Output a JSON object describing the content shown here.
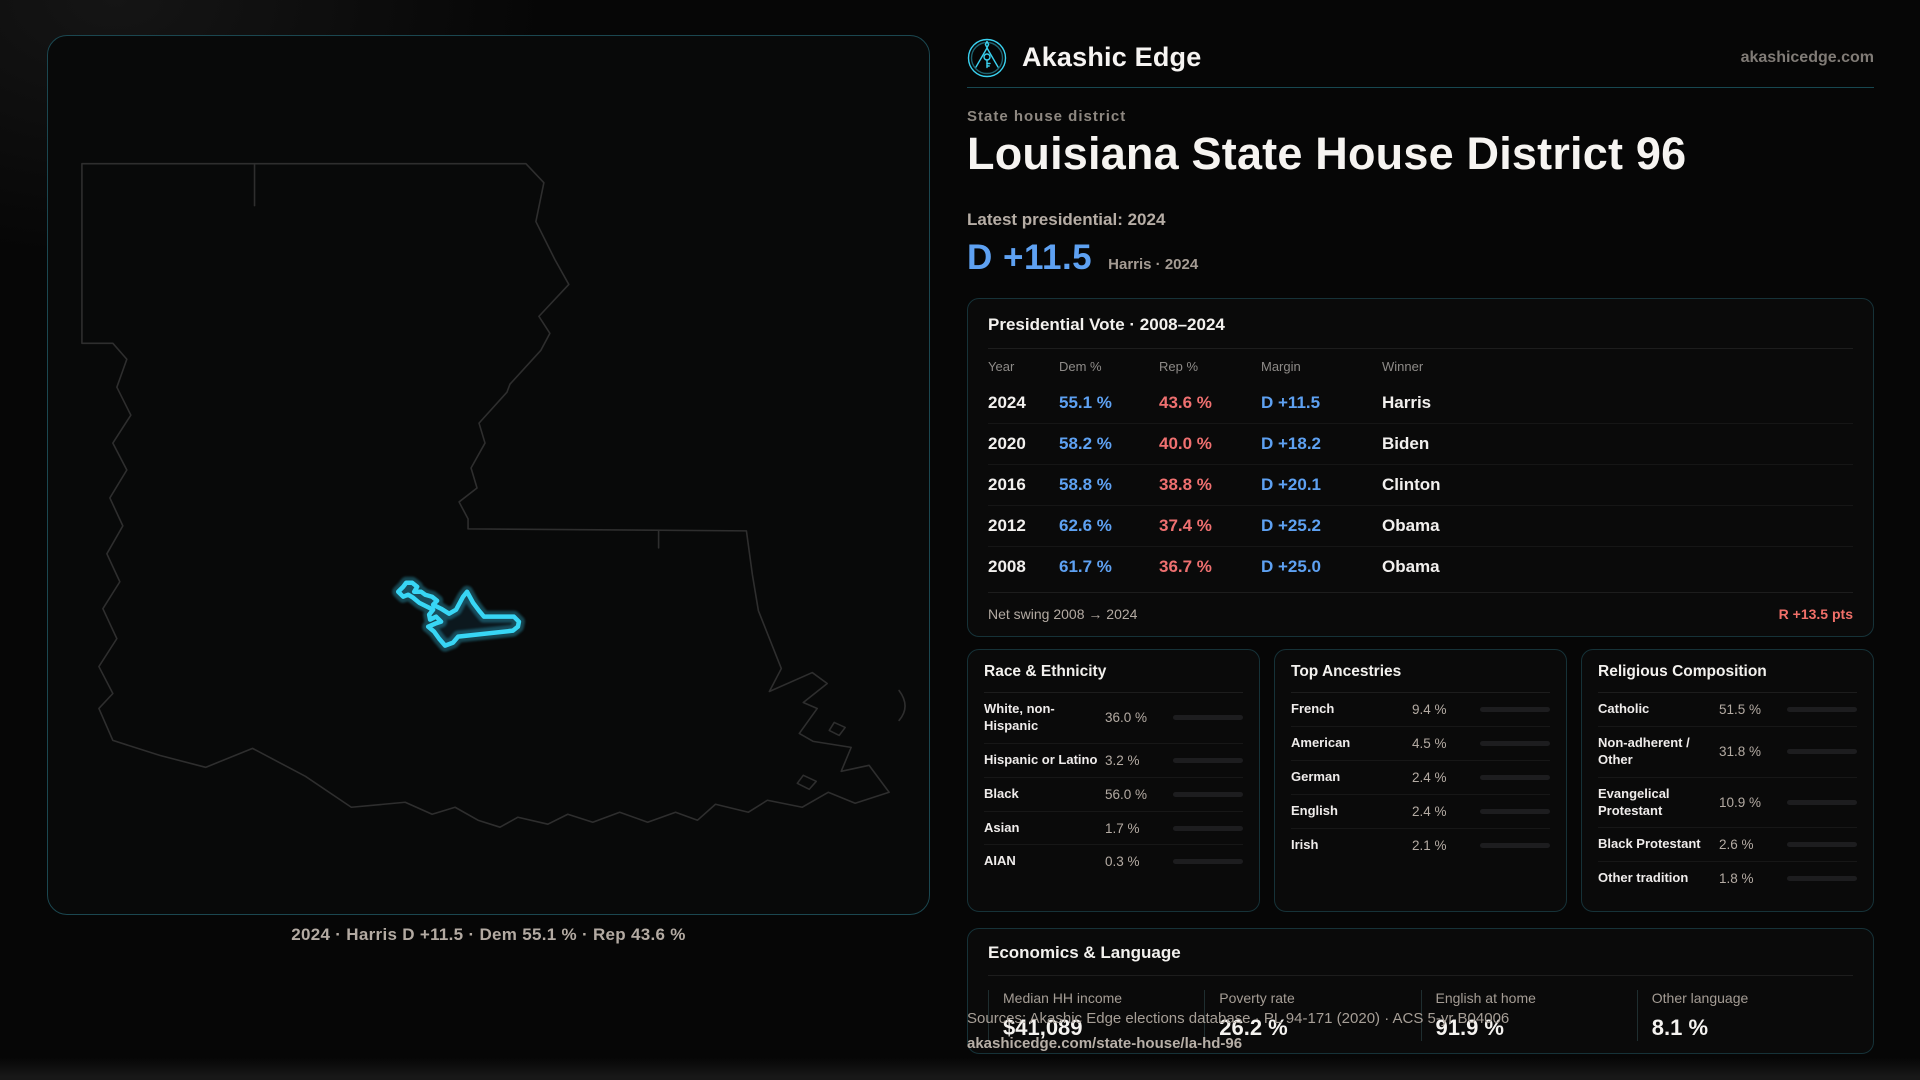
{
  "brand": {
    "name": "Akashic Edge",
    "domain": "akashicedge.com",
    "logo_icon": "akashic-emblem-icon",
    "accent_cyan": "#38d6f5"
  },
  "page": {
    "eyebrow": "State house district",
    "title": "Louisiana State House District 96",
    "latest_label": "Latest presidential: 2024",
    "headline_margin": "D +11.5",
    "headline_context": "Harris · 2024",
    "dem_color": "#5ea1f2",
    "rep_color": "#ef7070"
  },
  "map": {
    "state": "Louisiana",
    "caption": "2024 · Harris D +11.5 · Dem 55.1 % · Rep 43.6 %",
    "district_outline_color": "#38d6f5",
    "state_outline_color": "#2e2e2e"
  },
  "presidential_table": {
    "title": "Presidential Vote · 2008–2024",
    "columns": [
      "Year",
      "Dem %",
      "Rep %",
      "Margin",
      "Winner"
    ],
    "rows": [
      {
        "year": "2024",
        "dem": "55.1 %",
        "rep": "43.6 %",
        "margin": "D +11.5",
        "winner": "Harris"
      },
      {
        "year": "2020",
        "dem": "58.2 %",
        "rep": "40.0 %",
        "margin": "D +18.2",
        "winner": "Biden"
      },
      {
        "year": "2016",
        "dem": "58.8 %",
        "rep": "38.8 %",
        "margin": "D +20.1",
        "winner": "Clinton"
      },
      {
        "year": "2012",
        "dem": "62.6 %",
        "rep": "37.4 %",
        "margin": "D +25.2",
        "winner": "Obama"
      },
      {
        "year": "2008",
        "dem": "61.7 %",
        "rep": "36.7 %",
        "margin": "D +25.0",
        "winner": "Obama"
      }
    ],
    "net_swing_label": "Net swing 2008 → 2024",
    "net_swing_value": "R +13.5 pts"
  },
  "race_ethnicity": {
    "title": "Race & Ethnicity",
    "rows": [
      {
        "label": "White, non-Hispanic",
        "value": "36.0 %",
        "pct": 36.0,
        "color": "#8fa3bd"
      },
      {
        "label": "Hispanic or Latino",
        "value": "3.2 %",
        "pct": 3.2,
        "color": "#e6a53c"
      },
      {
        "label": "Black",
        "value": "56.0 %",
        "pct": 56.0,
        "color": "#8d74e6"
      },
      {
        "label": "Asian",
        "value": "1.7 %",
        "pct": 1.7,
        "color": "#2fbd8c"
      },
      {
        "label": "AIAN",
        "value": "0.3 %",
        "pct": 0.3,
        "color": "#cf7434"
      }
    ]
  },
  "ancestries": {
    "title": "Top Ancestries",
    "rows": [
      {
        "label": "French",
        "value": "9.4 %",
        "pct": 9.4,
        "color": "#92a9c8"
      },
      {
        "label": "American",
        "value": "4.5 %",
        "pct": 4.5,
        "color": "#92a9c8"
      },
      {
        "label": "German",
        "value": "2.4 %",
        "pct": 2.4,
        "color": "#92a9c8"
      },
      {
        "label": "English",
        "value": "2.4 %",
        "pct": 2.4,
        "color": "#92a9c8"
      },
      {
        "label": "Irish",
        "value": "2.1 %",
        "pct": 2.1,
        "color": "#92a9c8"
      }
    ]
  },
  "religion": {
    "title": "Religious Composition",
    "rows": [
      {
        "label": "Catholic",
        "value": "51.5 %",
        "pct": 51.5,
        "color": "#e3aa2d"
      },
      {
        "label": "Non-adherent / Other",
        "value": "31.8 %",
        "pct": 31.8,
        "color": "#8b94a6"
      },
      {
        "label": "Evangelical Protestant",
        "value": "10.9 %",
        "pct": 10.9,
        "color": "#e2736c"
      },
      {
        "label": "Black Protestant",
        "value": "2.6 %",
        "pct": 2.6,
        "color": "#9d8df2"
      },
      {
        "label": "Other tradition",
        "value": "1.8 %",
        "pct": 1.8,
        "color": "#cacaca"
      }
    ]
  },
  "economics": {
    "title": "Economics & Language",
    "stats": [
      {
        "label": "Median HH income",
        "value": "$41,089"
      },
      {
        "label": "Poverty rate",
        "value": "26.2 %"
      },
      {
        "label": "English at home",
        "value": "91.9 %"
      },
      {
        "label": "Other language",
        "value": "8.1 %"
      }
    ]
  },
  "footer": {
    "sources": "Sources: Akashic Edge elections database · PL 94-171 (2020) · ACS 5-yr B04006",
    "permalink": "akashicedge.com/state-house/la-hd-96"
  }
}
